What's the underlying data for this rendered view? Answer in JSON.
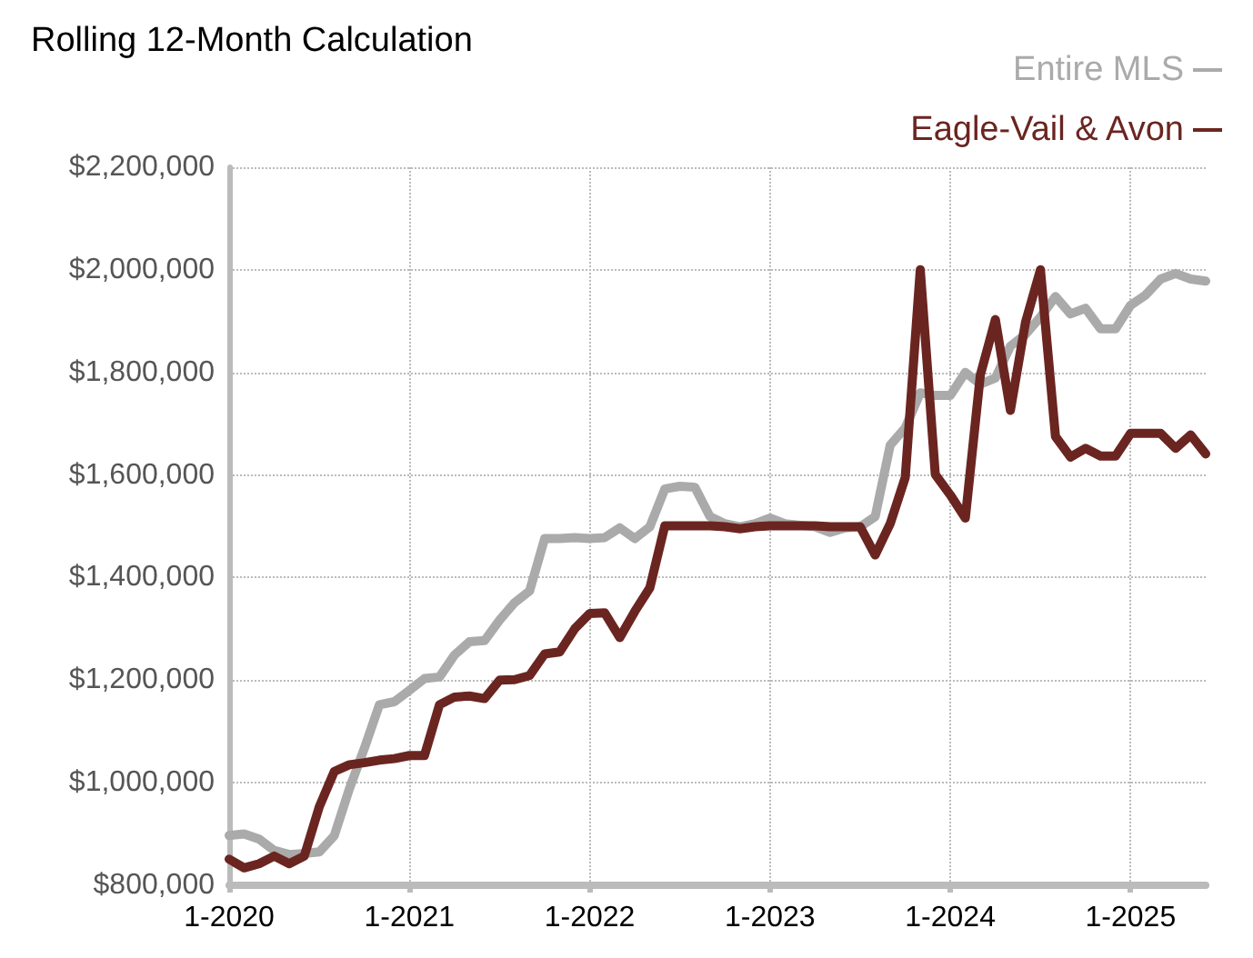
{
  "chart_data": {
    "type": "line",
    "title": "Rolling 12-Month Calculation",
    "categories": [
      "1-2020",
      null,
      null,
      null,
      null,
      null,
      null,
      null,
      null,
      null,
      null,
      null,
      "1-2021",
      null,
      null,
      null,
      null,
      null,
      null,
      null,
      null,
      null,
      null,
      null,
      "1-2022",
      null,
      null,
      null,
      null,
      null,
      null,
      null,
      null,
      null,
      null,
      null,
      "1-2023",
      null,
      null,
      null,
      null,
      null,
      null,
      null,
      null,
      null,
      null,
      null,
      "1-2024",
      null,
      null,
      null,
      null,
      null,
      null,
      null,
      null,
      null,
      null,
      null,
      "1-2025",
      null,
      null,
      null,
      null,
      null
    ],
    "series": [
      {
        "name": "Entire MLS",
        "color": "#aaaaaa",
        "values": [
          897000,
          900000,
          890000,
          868000,
          860000,
          862000,
          865000,
          897000,
          988000,
          1067000,
          1152000,
          1158000,
          1180000,
          1203000,
          1206000,
          1249000,
          1275000,
          1277000,
          1317000,
          1351000,
          1374000,
          1476000,
          1476000,
          1478000,
          1476000,
          1478000,
          1497000,
          1476000,
          1499000,
          1573000,
          1578000,
          1576000,
          1519000,
          1505000,
          1499000,
          1505000,
          1516000,
          1505000,
          1502000,
          1499000,
          1488000,
          1497000,
          1499000,
          1519000,
          1658000,
          1692000,
          1760000,
          1755000,
          1755000,
          1800000,
          1777000,
          1789000,
          1851000,
          1874000,
          1908000,
          1948000,
          1914000,
          1925000,
          1885000,
          1885000,
          1931000,
          1951000,
          1982000,
          1993000,
          1982000,
          1978000
        ]
      },
      {
        "name": "Eagle-Vail & Avon",
        "color": "#6b2520",
        "values": [
          851000,
          834000,
          842000,
          857000,
          842000,
          857000,
          953000,
          1022000,
          1035000,
          1039000,
          1044000,
          1047000,
          1053000,
          1053000,
          1152000,
          1167000,
          1169000,
          1164000,
          1200000,
          1201000,
          1209000,
          1251000,
          1255000,
          1300000,
          1330000,
          1331000,
          1283000,
          1334000,
          1380000,
          1501000,
          1501000,
          1501000,
          1501000,
          1499000,
          1495000,
          1499000,
          1501000,
          1501000,
          1501000,
          1501000,
          1499000,
          1499000,
          1499000,
          1444000,
          1505000,
          1595000,
          2000000,
          1601000,
          1561000,
          1516000,
          1795000,
          1903000,
          1726000,
          1897000,
          2000000,
          1675000,
          1635000,
          1652000,
          1637000,
          1637000,
          1681000,
          1681000,
          1681000,
          1652000,
          1678000,
          1641000
        ]
      }
    ],
    "ylim": [
      800000,
      2200000
    ],
    "yticks": [
      {
        "value": 800000,
        "label": "$800,000"
      },
      {
        "value": 1000000,
        "label": "$1,000,000"
      },
      {
        "value": 1200000,
        "label": "$1,200,000"
      },
      {
        "value": 1400000,
        "label": "$1,400,000"
      },
      {
        "value": 1600000,
        "label": "$1,600,000"
      },
      {
        "value": 1800000,
        "label": "$1,800,000"
      },
      {
        "value": 2000000,
        "label": "$2,000,000"
      },
      {
        "value": 2200000,
        "label": "$2,200,000"
      }
    ],
    "grid": true,
    "legend": "top right",
    "marker": "none",
    "line_style": "solid"
  }
}
